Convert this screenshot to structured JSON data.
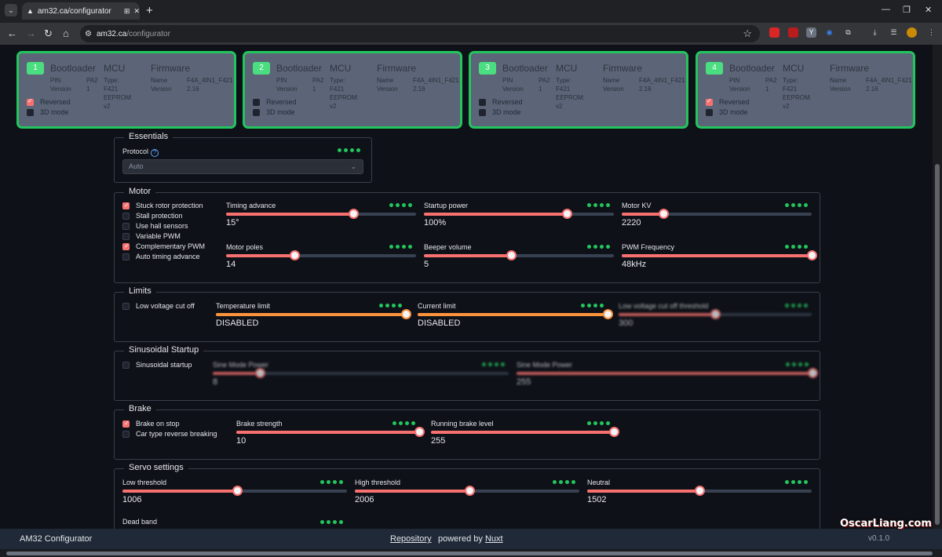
{
  "browser": {
    "tab_title": "am32.ca/configurator",
    "url_host": "am32.ca",
    "url_path": "/configurator"
  },
  "escs": [
    {
      "num": "1",
      "reversed": true,
      "three_d": false
    },
    {
      "num": "2",
      "reversed": false,
      "three_d": false
    },
    {
      "num": "3",
      "reversed": false,
      "three_d": false
    },
    {
      "num": "4",
      "reversed": true,
      "three_d": false
    }
  ],
  "esc_labels": {
    "bootloader": "Bootloader",
    "mcu": "MCU",
    "firmware": "Firmware",
    "pin_k": "PIN",
    "pin_v": "PA2",
    "version_k": "Version",
    "version_v": "1",
    "type": "Type: F421",
    "eeprom": "EEPROM: v2",
    "name_k": "Name",
    "name_v": "F4A_4IN1_F421",
    "fw_version_k": "Version",
    "fw_version_v": "2.16",
    "reversed": "Reversed",
    "three_d": "3D mode"
  },
  "essentials": {
    "legend": "Essentials",
    "protocol_label": "Protocol",
    "protocol_value": "Auto"
  },
  "motor": {
    "legend": "Motor",
    "checks": [
      {
        "label": "Stuck rotor protection",
        "on": true
      },
      {
        "label": "Stall protection",
        "on": false
      },
      {
        "label": "Use hall sensors",
        "on": false
      },
      {
        "label": "Variable PWM",
        "on": false
      },
      {
        "label": "Complementary PWM",
        "on": true
      },
      {
        "label": "Auto timing advance",
        "on": false
      }
    ],
    "sliders": [
      {
        "label": "Timing advance",
        "value": "15°",
        "pct": 0.67
      },
      {
        "label": "Startup power",
        "value": "100%",
        "pct": 0.75
      },
      {
        "label": "Motor KV",
        "value": "2220",
        "pct": 0.22
      },
      {
        "label": "Motor poles",
        "value": "14",
        "pct": 0.36
      },
      {
        "label": "Beeper volume",
        "value": "5",
        "pct": 0.46
      },
      {
        "label": "PWM Frequency",
        "value": "48kHz",
        "pct": 1.0
      }
    ]
  },
  "limits": {
    "legend": "Limits",
    "check": {
      "label": "Low voltage cut off",
      "on": false
    },
    "sliders": [
      {
        "label": "Temperature limit",
        "value": "DISABLED",
        "pct": 1.0
      },
      {
        "label": "Current limit",
        "value": "DISABLED",
        "pct": 1.0
      },
      {
        "label": "Low voltage cut off threshold",
        "value": "300",
        "pct": 0.5
      }
    ]
  },
  "sinusoidal": {
    "legend": "Sinusoidal Startup",
    "check": {
      "label": "Sinusoidal startup",
      "on": false
    },
    "sliders": [
      {
        "label": "Sine Mode Power",
        "value": "8",
        "pct": 0.16
      },
      {
        "label": "Sine Mode Power",
        "value": "255",
        "pct": 1.0
      }
    ]
  },
  "brake": {
    "legend": "Brake",
    "checks": [
      {
        "label": "Brake on stop",
        "on": true
      },
      {
        "label": "Car type reverse breaking",
        "on": false
      }
    ],
    "sliders": [
      {
        "label": "Brake strength",
        "value": "10",
        "pct": 1.0
      },
      {
        "label": "Running brake level",
        "value": "255",
        "pct": 1.0
      }
    ]
  },
  "servo": {
    "legend": "Servo settings",
    "sliders": [
      {
        "label": "Low threshold",
        "value": "1006",
        "pct": 0.51
      },
      {
        "label": "High threshold",
        "value": "2006",
        "pct": 0.51
      },
      {
        "label": "Neutral",
        "value": "1502",
        "pct": 0.5
      }
    ],
    "dead_band": "Dead band"
  },
  "footer": {
    "app": "AM32 Configurator",
    "repo": "Repository",
    "powered": "powered by ",
    "nuxt": "Nuxt",
    "version": "v0.1.0"
  },
  "watermark": "OscarLiang.com"
}
